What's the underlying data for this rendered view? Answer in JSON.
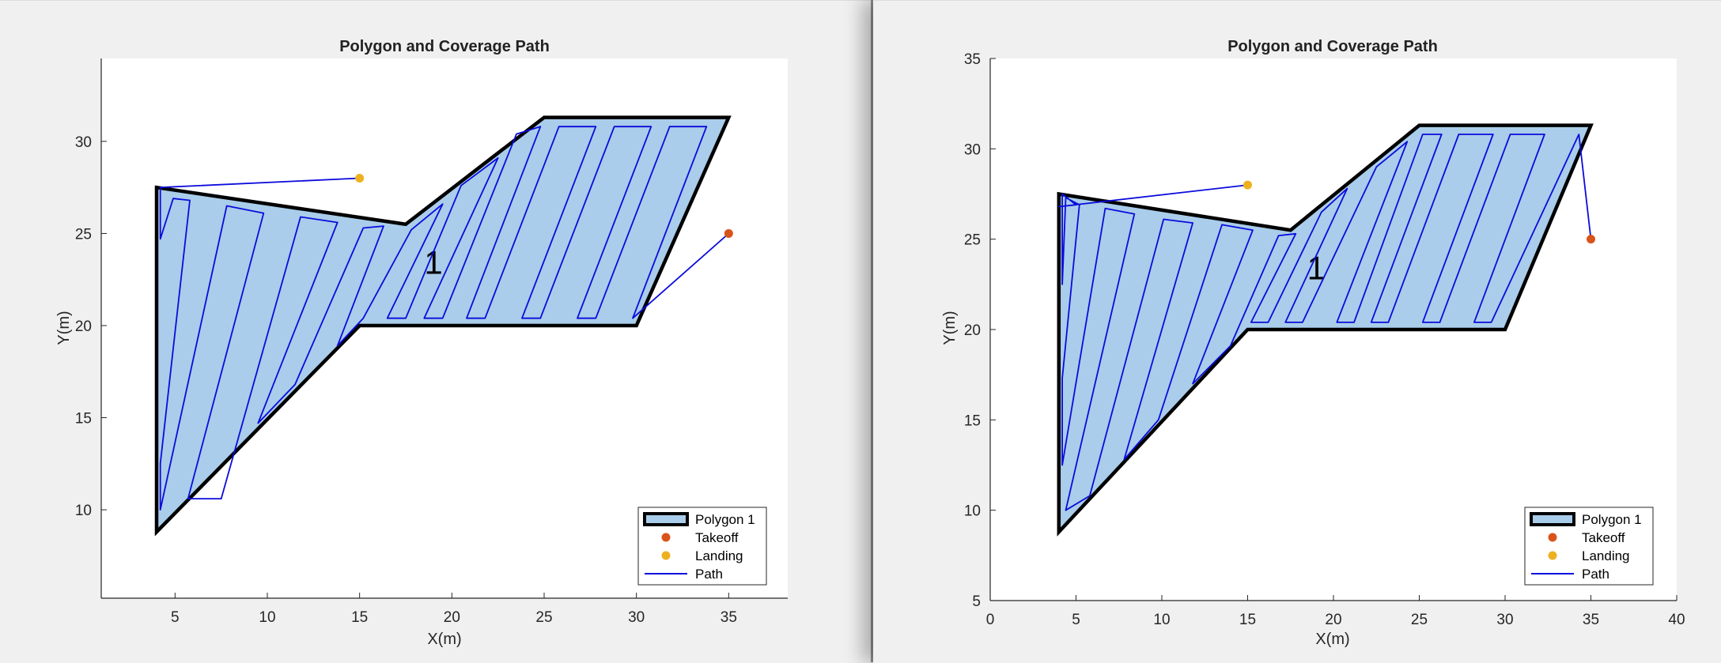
{
  "chart_data": [
    {
      "type": "scatter",
      "title": "Polygon and Coverage Path",
      "xlabel": "X(m)",
      "ylabel": "Y(m)",
      "xlim": [
        1,
        38.2
      ],
      "ylim": [
        5.2,
        34.5
      ],
      "xticks": [
        5,
        10,
        15,
        20,
        25,
        30,
        35
      ],
      "yticks": [
        10,
        15,
        20,
        25,
        30
      ],
      "grid": false,
      "legend_position": "bottom-right",
      "polygon": {
        "name": "Polygon 1",
        "label": "1",
        "label_at": [
          19,
          23.4
        ],
        "fill": "#a9cdea",
        "edge": "#000000",
        "vertices": [
          [
            4,
            27.5
          ],
          [
            17.5,
            25.5
          ],
          [
            25,
            31.3
          ],
          [
            35,
            31.3
          ],
          [
            30,
            20
          ],
          [
            15,
            20
          ],
          [
            4,
            8.8
          ]
        ]
      },
      "takeoff": {
        "name": "Takeoff",
        "x": 35,
        "y": 25,
        "color": "#d9541a"
      },
      "landing": {
        "name": "Landing",
        "x": 15,
        "y": 28,
        "color": "#edb120"
      },
      "path": {
        "name": "Path",
        "color": "#0b0bdc",
        "points": [
          [
            35,
            25
          ],
          [
            29.8,
            20.4
          ],
          [
            33.8,
            30.8
          ],
          [
            31.8,
            30.8
          ],
          [
            27.8,
            20.4
          ],
          [
            26.8,
            20.4
          ],
          [
            30.8,
            30.8
          ],
          [
            28.8,
            30.8
          ],
          [
            24.8,
            20.4
          ],
          [
            23.8,
            20.4
          ],
          [
            27.8,
            30.8
          ],
          [
            25.8,
            30.8
          ],
          [
            21.8,
            20.4
          ],
          [
            20.8,
            20.4
          ],
          [
            24.8,
            30.8
          ],
          [
            23.5,
            30.4
          ],
          [
            19.5,
            20.4
          ],
          [
            18.5,
            20.4
          ],
          [
            22.5,
            29.1
          ],
          [
            20.5,
            27.6
          ],
          [
            17.5,
            20.4
          ],
          [
            16.5,
            20.4
          ],
          [
            19.5,
            26.6
          ],
          [
            17.8,
            25.2
          ],
          [
            15.2,
            20.4
          ],
          [
            13.8,
            18.9
          ],
          [
            16.3,
            25.4
          ],
          [
            15.2,
            25.3
          ],
          [
            11.5,
            16.8
          ],
          [
            9.5,
            14.7
          ],
          [
            13.8,
            25.6
          ],
          [
            11.8,
            25.9
          ],
          [
            7.5,
            10.6
          ],
          [
            5.7,
            10.6
          ],
          [
            9.8,
            26.1
          ],
          [
            7.8,
            26.5
          ],
          [
            4.2,
            10
          ],
          [
            4.2,
            12.5
          ],
          [
            5.8,
            26.8
          ],
          [
            4.9,
            26.9
          ],
          [
            4.2,
            24.7
          ],
          [
            4.2,
            27.5
          ],
          [
            15,
            28
          ]
        ]
      }
    },
    {
      "type": "scatter",
      "title": "Polygon and Coverage Path",
      "xlabel": "X(m)",
      "ylabel": "Y(m)",
      "xlim": [
        0,
        40
      ],
      "ylim": [
        5,
        35
      ],
      "xticks": [
        0,
        5,
        10,
        15,
        20,
        25,
        30,
        35,
        40
      ],
      "yticks": [
        5,
        10,
        15,
        20,
        25,
        30,
        35
      ],
      "grid": false,
      "legend_position": "bottom-right",
      "polygon": {
        "name": "Polygon 1",
        "label": "1",
        "label_at": [
          19,
          23.4
        ],
        "fill": "#a9cdea",
        "edge": "#000000",
        "vertices": [
          [
            4,
            27.5
          ],
          [
            17.5,
            25.5
          ],
          [
            25,
            31.3
          ],
          [
            35,
            31.3
          ],
          [
            30,
            20
          ],
          [
            15,
            20
          ],
          [
            4,
            8.8
          ]
        ]
      },
      "takeoff": {
        "name": "Takeoff",
        "x": 35,
        "y": 25,
        "color": "#d9541a"
      },
      "landing": {
        "name": "Landing",
        "x": 15,
        "y": 28,
        "color": "#edb120"
      },
      "path": {
        "name": "Path",
        "color": "#0b0bdc",
        "points": [
          [
            35,
            25
          ],
          [
            34.3,
            30.8
          ],
          [
            29.2,
            20.4
          ],
          [
            28.2,
            20.4
          ],
          [
            32.3,
            30.8
          ],
          [
            30.3,
            30.8
          ],
          [
            26.2,
            20.4
          ],
          [
            25.2,
            20.4
          ],
          [
            29.3,
            30.8
          ],
          [
            27.3,
            30.8
          ],
          [
            23.2,
            20.4
          ],
          [
            22.2,
            20.4
          ],
          [
            26.3,
            30.8
          ],
          [
            25.2,
            30.8
          ],
          [
            21.2,
            20.4
          ],
          [
            20.2,
            20.4
          ],
          [
            24.3,
            30.4
          ],
          [
            22.5,
            29
          ],
          [
            18.2,
            20.4
          ],
          [
            17.2,
            20.4
          ],
          [
            20.8,
            27.8
          ],
          [
            19.3,
            26.5
          ],
          [
            16.2,
            20.4
          ],
          [
            15.2,
            20.4
          ],
          [
            17.8,
            25.3
          ],
          [
            16.8,
            25.2
          ],
          [
            14,
            19.1
          ],
          [
            11.8,
            17
          ],
          [
            15.3,
            25.5
          ],
          [
            13.5,
            25.8
          ],
          [
            9.8,
            15
          ],
          [
            7.8,
            12.8
          ],
          [
            11.8,
            25.9
          ],
          [
            10.1,
            26.1
          ],
          [
            5.8,
            10.8
          ],
          [
            4.4,
            10
          ],
          [
            8.4,
            26.4
          ],
          [
            6.7,
            26.7
          ],
          [
            4.2,
            12.5
          ],
          [
            4.2,
            17.3
          ],
          [
            5.2,
            26.9
          ],
          [
            4.4,
            27.3
          ],
          [
            4.2,
            22.5
          ],
          [
            4.2,
            27.5
          ],
          [
            5,
            26.9
          ],
          [
            4,
            26.8
          ],
          [
            15,
            28
          ]
        ]
      }
    }
  ],
  "legend": {
    "polygon": "Polygon 1",
    "takeoff": "Takeoff",
    "landing": "Landing",
    "path": "Path"
  }
}
